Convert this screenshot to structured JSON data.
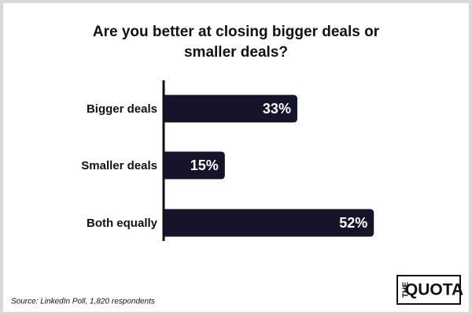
{
  "chart_data": {
    "type": "bar",
    "orientation": "horizontal",
    "title": "Are you better at closing bigger deals or smaller deals?",
    "categories": [
      "Bigger deals",
      "Smaller deals",
      "Both equally"
    ],
    "values": [
      33,
      15,
      52
    ],
    "value_labels": [
      "33%",
      "15%",
      "52%"
    ],
    "color": "#14142b",
    "source": "Source: LinkedIn Poll, 1,820 respondents",
    "logo": {
      "top": "THE",
      "main": "QUOTA"
    }
  }
}
